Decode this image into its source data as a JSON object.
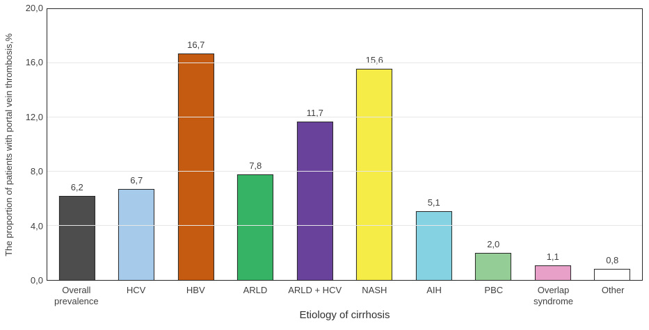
{
  "chart_data": {
    "type": "bar",
    "title": "",
    "xlabel": "Etiology of cirrhosis",
    "ylabel": "The proportion of patients with portal vein thrombosis,%",
    "ylim": [
      0,
      20
    ],
    "grid": true,
    "legend": "none",
    "yticks": [
      {
        "value": 0,
        "label": "0,0"
      },
      {
        "value": 4,
        "label": "4,0"
      },
      {
        "value": 8,
        "label": "8,0"
      },
      {
        "value": 12,
        "label": "12,0"
      },
      {
        "value": 16,
        "label": "16,0"
      },
      {
        "value": 20,
        "label": "20,0"
      }
    ],
    "categories": [
      "Overall prevalence",
      "HCV",
      "HBV",
      "ARLD",
      "ARLD + HCV",
      "NASH",
      "AIH",
      "PBC",
      "Overlap syndrome",
      "Other"
    ],
    "values": [
      6.2,
      6.7,
      16.7,
      7.8,
      11.7,
      15.6,
      5.1,
      2.0,
      1.1,
      0.8
    ],
    "value_labels": [
      "6,2",
      "6,7",
      "16,7",
      "7,8",
      "11,7",
      "15,6",
      "5,1",
      "2,0",
      "1,1",
      "0,8"
    ],
    "bar_colors": [
      "#4d4d4d",
      "#a6caea",
      "#c55a11",
      "#36b364",
      "#68429b",
      "#f5ec47",
      "#84d2e2",
      "#95cd96",
      "#e9a0c8",
      "#ffffff"
    ],
    "bar_border_color": "#262626",
    "gridline_color": "#e6e6e6",
    "axis_color": "#262626",
    "text_color": "#3f3f3f"
  }
}
